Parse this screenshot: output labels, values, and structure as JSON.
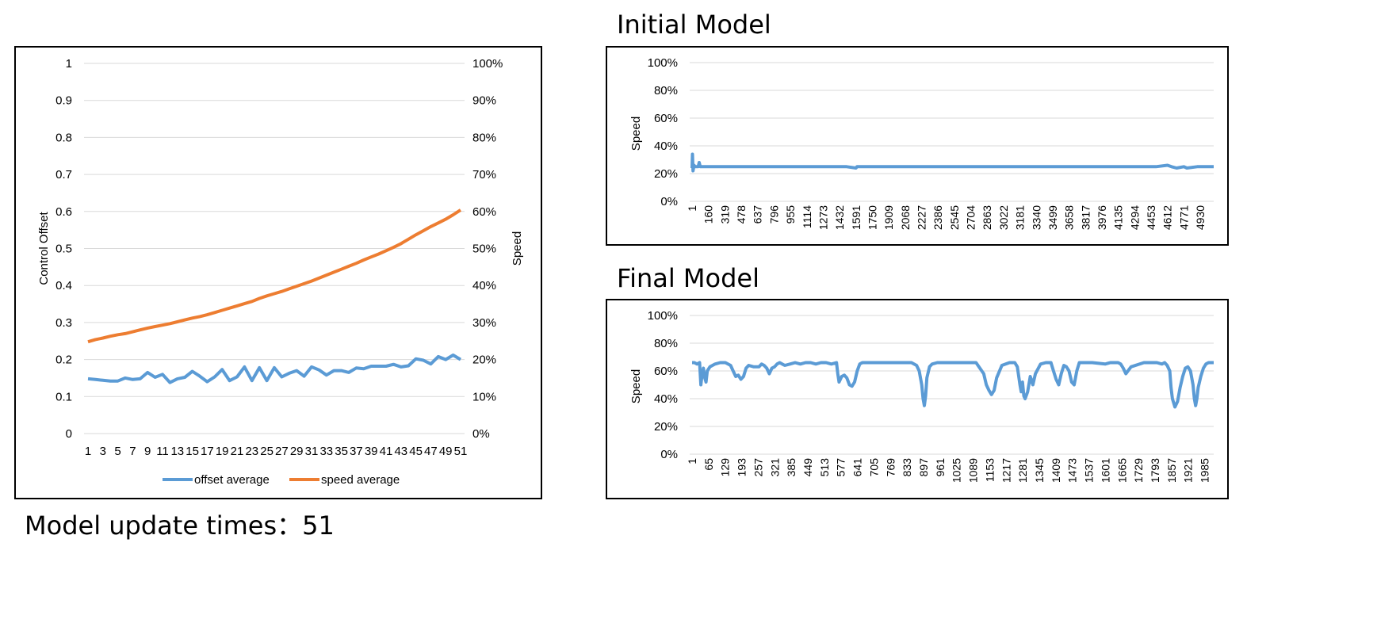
{
  "footer": {
    "caption": "Model update times：51"
  },
  "colors": {
    "offset": "#5B9BD5",
    "speed": "#ED7D31",
    "grid": "#D9D9D9"
  },
  "chart_data": [
    {
      "type": "line",
      "title": "",
      "xlabel": "",
      "ylabel": "Control Offset",
      "y2label": "Speed",
      "ylim": [
        0,
        1
      ],
      "y2lim": [
        0,
        1
      ],
      "yticks": [
        "0",
        "0.1",
        "0.2",
        "0.3",
        "0.4",
        "0.5",
        "0.6",
        "0.7",
        "0.8",
        "0.9",
        "1"
      ],
      "y2ticks": [
        "0%",
        "10%",
        "20%",
        "30%",
        "40%",
        "50%",
        "60%",
        "70%",
        "80%",
        "90%",
        "100%"
      ],
      "xticks": [
        "1",
        "3",
        "5",
        "7",
        "9",
        "11",
        "13",
        "15",
        "17",
        "19",
        "21",
        "23",
        "25",
        "27",
        "29",
        "31",
        "33",
        "35",
        "37",
        "39",
        "41",
        "43",
        "45",
        "47",
        "49",
        "51"
      ],
      "x": [
        1,
        2,
        3,
        4,
        5,
        6,
        7,
        8,
        9,
        10,
        11,
        12,
        13,
        14,
        15,
        16,
        17,
        18,
        19,
        20,
        21,
        22,
        23,
        24,
        25,
        26,
        27,
        28,
        29,
        30,
        31,
        32,
        33,
        34,
        35,
        36,
        37,
        38,
        39,
        40,
        41,
        42,
        43,
        44,
        45,
        46,
        47,
        48,
        49,
        50,
        51
      ],
      "legend_position": "bottom",
      "grid": true,
      "series": [
        {
          "name": "offset average",
          "axis": "left",
          "values": [
            0.148,
            0.146,
            0.144,
            0.142,
            0.142,
            0.15,
            0.146,
            0.148,
            0.165,
            0.152,
            0.16,
            0.138,
            0.148,
            0.152,
            0.168,
            0.155,
            0.14,
            0.153,
            0.173,
            0.143,
            0.153,
            0.18,
            0.143,
            0.178,
            0.143,
            0.178,
            0.153,
            0.163,
            0.17,
            0.155,
            0.18,
            0.172,
            0.158,
            0.17,
            0.17,
            0.165,
            0.177,
            0.175,
            0.182,
            0.182,
            0.182,
            0.187,
            0.18,
            0.183,
            0.202,
            0.198,
            0.188,
            0.208,
            0.2,
            0.212,
            0.2
          ]
        },
        {
          "name": "speed average",
          "axis": "right",
          "values": [
            0.248,
            0.254,
            0.258,
            0.263,
            0.267,
            0.27,
            0.275,
            0.28,
            0.285,
            0.289,
            0.293,
            0.297,
            0.302,
            0.307,
            0.312,
            0.316,
            0.321,
            0.327,
            0.333,
            0.339,
            0.345,
            0.351,
            0.357,
            0.365,
            0.372,
            0.378,
            0.384,
            0.391,
            0.398,
            0.405,
            0.412,
            0.42,
            0.428,
            0.436,
            0.444,
            0.452,
            0.46,
            0.469,
            0.477,
            0.485,
            0.494,
            0.503,
            0.513,
            0.525,
            0.537,
            0.548,
            0.559,
            0.569,
            0.579,
            0.591,
            0.604
          ]
        }
      ]
    },
    {
      "type": "line",
      "title": "Initial Model",
      "xlabel": "",
      "ylabel": "Speed",
      "ylim": [
        0,
        1
      ],
      "yticks": [
        "0%",
        "20%",
        "40%",
        "60%",
        "80%",
        "100%"
      ],
      "xticks": [
        "1",
        "160",
        "319",
        "478",
        "637",
        "796",
        "955",
        "1114",
        "1273",
        "1432",
        "1591",
        "1750",
        "1909",
        "2068",
        "2227",
        "2386",
        "2545",
        "2704",
        "2863",
        "3022",
        "3181",
        "3340",
        "3499",
        "3658",
        "3817",
        "3976",
        "4135",
        "4294",
        "4453",
        "4612",
        "4771",
        "4930"
      ],
      "x": [
        1,
        5,
        10,
        20,
        30,
        60,
        70,
        80,
        100,
        200,
        300,
        400,
        500,
        1000,
        1500,
        1591,
        1600,
        2000,
        2500,
        3000,
        3500,
        4000,
        4500,
        4612,
        4650,
        4700,
        4771,
        4800,
        4900,
        5000,
        5060
      ],
      "grid": true,
      "series": [
        {
          "name": "",
          "values": [
            0.24,
            0.34,
            0.22,
            0.26,
            0.25,
            0.25,
            0.28,
            0.25,
            0.25,
            0.25,
            0.25,
            0.25,
            0.25,
            0.25,
            0.25,
            0.24,
            0.25,
            0.25,
            0.25,
            0.25,
            0.25,
            0.25,
            0.25,
            0.26,
            0.25,
            0.24,
            0.25,
            0.24,
            0.25,
            0.25,
            0.25
          ]
        }
      ]
    },
    {
      "type": "line",
      "title": "Final Model",
      "xlabel": "",
      "ylabel": "Speed",
      "ylim": [
        0,
        1
      ],
      "yticks": [
        "0%",
        "20%",
        "40%",
        "60%",
        "80%",
        "100%"
      ],
      "xticks": [
        "1",
        "65",
        "129",
        "193",
        "257",
        "321",
        "385",
        "449",
        "513",
        "577",
        "641",
        "705",
        "769",
        "833",
        "897",
        "961",
        "1025",
        "1089",
        "1153",
        "1217",
        "1281",
        "1345",
        "1409",
        "1473",
        "1537",
        "1601",
        "1665",
        "1729",
        "1793",
        "1857",
        "1921",
        "1985"
      ],
      "x": [
        1,
        10,
        20,
        30,
        35,
        40,
        45,
        50,
        55,
        60,
        70,
        90,
        110,
        130,
        150,
        160,
        170,
        180,
        190,
        200,
        210,
        220,
        240,
        260,
        270,
        280,
        290,
        300,
        310,
        320,
        330,
        340,
        350,
        360,
        380,
        400,
        420,
        440,
        460,
        480,
        500,
        520,
        540,
        560,
        565,
        570,
        580,
        590,
        600,
        610,
        620,
        630,
        640,
        650,
        660,
        680,
        700,
        750,
        800,
        850,
        870,
        880,
        890,
        895,
        900,
        905,
        910,
        920,
        930,
        950,
        1000,
        1050,
        1100,
        1130,
        1140,
        1150,
        1160,
        1170,
        1180,
        1200,
        1230,
        1250,
        1260,
        1270,
        1275,
        1280,
        1285,
        1290,
        1300,
        1310,
        1320,
        1330,
        1350,
        1370,
        1390,
        1400,
        1410,
        1420,
        1430,
        1440,
        1450,
        1460,
        1470,
        1480,
        1490,
        1500,
        1550,
        1600,
        1620,
        1640,
        1650,
        1660,
        1670,
        1680,
        1700,
        1750,
        1800,
        1820,
        1830,
        1840,
        1850,
        1855,
        1860,
        1870,
        1880,
        1890,
        1900,
        1910,
        1920,
        1930,
        1940,
        1945,
        1950,
        1955,
        1960,
        1970,
        1980,
        1990,
        2000,
        2010,
        2020
      ],
      "grid": true,
      "series": [
        {
          "name": "",
          "values": [
            0.66,
            0.66,
            0.65,
            0.66,
            0.5,
            0.58,
            0.62,
            0.55,
            0.52,
            0.6,
            0.63,
            0.65,
            0.66,
            0.66,
            0.64,
            0.6,
            0.56,
            0.57,
            0.54,
            0.56,
            0.62,
            0.64,
            0.63,
            0.63,
            0.65,
            0.64,
            0.62,
            0.58,
            0.62,
            0.63,
            0.65,
            0.66,
            0.65,
            0.64,
            0.65,
            0.66,
            0.65,
            0.66,
            0.66,
            0.65,
            0.66,
            0.66,
            0.65,
            0.66,
            0.58,
            0.52,
            0.56,
            0.57,
            0.55,
            0.5,
            0.49,
            0.52,
            0.6,
            0.65,
            0.66,
            0.66,
            0.66,
            0.66,
            0.66,
            0.66,
            0.64,
            0.6,
            0.5,
            0.4,
            0.35,
            0.42,
            0.55,
            0.63,
            0.65,
            0.66,
            0.66,
            0.66,
            0.66,
            0.58,
            0.5,
            0.46,
            0.43,
            0.46,
            0.55,
            0.64,
            0.66,
            0.66,
            0.63,
            0.5,
            0.45,
            0.52,
            0.42,
            0.4,
            0.45,
            0.56,
            0.5,
            0.58,
            0.65,
            0.66,
            0.66,
            0.6,
            0.54,
            0.5,
            0.58,
            0.64,
            0.63,
            0.6,
            0.52,
            0.5,
            0.6,
            0.66,
            0.66,
            0.65,
            0.66,
            0.66,
            0.66,
            0.65,
            0.62,
            0.58,
            0.63,
            0.66,
            0.66,
            0.65,
            0.66,
            0.64,
            0.6,
            0.48,
            0.4,
            0.34,
            0.38,
            0.48,
            0.56,
            0.62,
            0.63,
            0.6,
            0.5,
            0.4,
            0.35,
            0.4,
            0.48,
            0.56,
            0.62,
            0.65,
            0.66,
            0.66,
            0.66
          ]
        }
      ]
    }
  ]
}
